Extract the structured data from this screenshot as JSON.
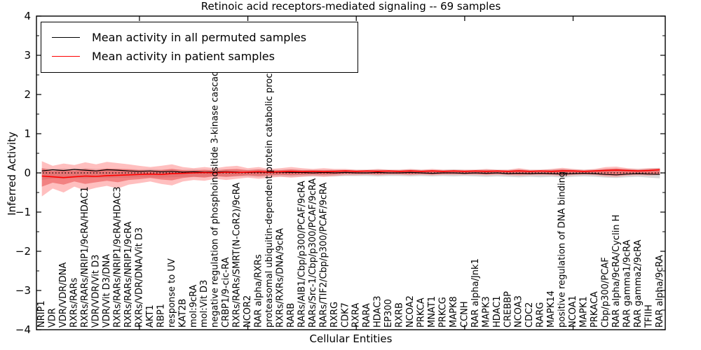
{
  "chart_data": {
    "type": "line",
    "title": "Retinoic acid receptors-mediated signaling -- 69 samples",
    "xlabel": "Cellular Entities",
    "ylabel": "Inferred Activity",
    "ylim": [
      -4,
      4
    ],
    "yticks": [
      4,
      3,
      2,
      1,
      0,
      -1,
      -2,
      -3,
      -4
    ],
    "y_minor_step": 0.5,
    "grid": false,
    "zero_line": true,
    "legend_position": "upper-left",
    "legend": [
      {
        "label": "Mean activity in all permuted samples",
        "color": "#000000"
      },
      {
        "label": "Mean activity in patient samples",
        "color": "#ff0000"
      }
    ],
    "categories": [
      "NRIP1",
      "VDR",
      "VDR/VDR/DNA",
      "RXRs/RARs",
      "RXRs/RARs/NRIP1/9cRA/HDAC1",
      "VDR/VDR/Vit D3",
      "VDR/Vit D3/DNA",
      "RXRs/RARs/NRIP1/9cRA/HDAC3",
      "RXRs/RARs/NRIP1/9cRA",
      "RXRs/VDR/DNA/Vit D3",
      "AKT1",
      "RBP1",
      "response to UV",
      "KAT2B",
      "mol:9cRA",
      "mol:Vit D3",
      "negative regulation of phosphoinositide 3-kinase cascade",
      "CRBP1/9-cic-RA",
      "RXRs/RARs/SMRT(N-CoR2)/9cRA",
      "NCOR2",
      "RAR alpha/RXRs",
      "proteasomal ubiquitin-dependent protein catabolic process",
      "RXRs/RXRs/DNA/9cRA",
      "RARB",
      "RARs/AIB1/Cbp/p300/PCAF/9cRA",
      "RARs/Src-1/Cbp/p300/PCAF/9cRA",
      "RARs/TIF2/Cbp/p300/PCAF/9cRA",
      "RXRG",
      "CDK7",
      "RXRA",
      "RARA",
      "HDAC3",
      "EP300",
      "RXRB",
      "NCOA2",
      "PRKCA",
      "MNAT1",
      "PRKCG",
      "MAPK8",
      "CCNH",
      "RAR alpha/Jnk1",
      "MAPK3",
      "HDAC1",
      "CREBBP",
      "NCOA3",
      "CDC2",
      "RARG",
      "MAPK14",
      "positive regulation of DNA binding",
      "NCOA1",
      "MAPK1",
      "PRKACA",
      "Cbp/p300/PCAF",
      "RAR alpha/9cRA/Cyclin H",
      "RAR gamma1/9cRA",
      "RAR gamma2/9cRA",
      "TFIIH",
      "RAR alpha/9cRA"
    ],
    "series": [
      {
        "name": "Mean activity in all permuted samples",
        "color": "#000000",
        "width": 1.2,
        "values": [
          0.05,
          0.08,
          0.06,
          0.09,
          0.07,
          0.05,
          0.08,
          0.07,
          0.05,
          0.04,
          0.05,
          0.03,
          0.04,
          0.02,
          0.03,
          0.02,
          0.02,
          0.03,
          0.02,
          0.01,
          0.02,
          0.01,
          0.02,
          0.01,
          0.01,
          0.0,
          0.01,
          0.0,
          0.01,
          0.0,
          0.0,
          0.01,
          0.0,
          0.0,
          0.01,
          0.0,
          -0.01,
          0.0,
          0.0,
          -0.01,
          0.0,
          -0.01,
          0.0,
          -0.02,
          -0.01,
          -0.02,
          -0.01,
          -0.02,
          -0.03,
          -0.02,
          -0.01,
          -0.02,
          -0.04,
          -0.05,
          -0.03,
          -0.02,
          -0.03,
          -0.04
        ]
      },
      {
        "name": "Mean activity in patient samples",
        "color": "#ff0000",
        "width": 1.6,
        "values": [
          -0.08,
          -0.1,
          -0.12,
          -0.1,
          -0.08,
          -0.09,
          -0.07,
          -0.06,
          -0.05,
          -0.04,
          -0.03,
          -0.04,
          -0.02,
          -0.01,
          0.0,
          0.01,
          0.0,
          0.02,
          0.01,
          0.02,
          0.03,
          0.02,
          0.03,
          0.04,
          0.03,
          0.04,
          0.03,
          0.04,
          0.05,
          0.04,
          0.05,
          0.04,
          0.05,
          0.04,
          0.05,
          0.04,
          0.05,
          0.04,
          0.05,
          0.04,
          0.05,
          0.04,
          0.05,
          0.04,
          0.05,
          0.04,
          0.05,
          0.04,
          0.05,
          0.05,
          0.04,
          0.05,
          0.06,
          0.07,
          0.06,
          0.05,
          0.06,
          0.08
        ]
      }
    ],
    "bands": [
      {
        "name": "permuted-samples-range",
        "color": "#b8b8b8",
        "opacity": 0.55,
        "upper": [
          0.12,
          0.1,
          0.11,
          0.1,
          0.12,
          0.1,
          0.11,
          0.1,
          0.1,
          0.09,
          0.1,
          0.09,
          0.1,
          0.08,
          0.09,
          0.08,
          0.08,
          0.09,
          0.08,
          0.08,
          0.09,
          0.08,
          0.08,
          0.09,
          0.08,
          0.08,
          0.08,
          0.08,
          0.08,
          0.08,
          0.08,
          0.09,
          0.08,
          0.08,
          0.09,
          0.08,
          0.08,
          0.08,
          0.09,
          0.08,
          0.08,
          0.09,
          0.08,
          0.08,
          0.09,
          0.08,
          0.08,
          0.09,
          0.1,
          0.09,
          0.08,
          0.09,
          0.1,
          0.11,
          0.1,
          0.1,
          0.11,
          0.13
        ],
        "lower": [
          -0.18,
          -0.14,
          -0.15,
          -0.13,
          -0.14,
          -0.12,
          -0.13,
          -0.12,
          -0.12,
          -0.11,
          -0.11,
          -0.12,
          -0.11,
          -0.1,
          -0.1,
          -0.1,
          -0.09,
          -0.1,
          -0.09,
          -0.09,
          -0.1,
          -0.09,
          -0.09,
          -0.1,
          -0.09,
          -0.09,
          -0.09,
          -0.09,
          -0.08,
          -0.08,
          -0.08,
          -0.09,
          -0.08,
          -0.08,
          -0.09,
          -0.08,
          -0.09,
          -0.08,
          -0.09,
          -0.08,
          -0.09,
          -0.1,
          -0.09,
          -0.1,
          -0.11,
          -0.1,
          -0.11,
          -0.1,
          -0.12,
          -0.1,
          -0.09,
          -0.1,
          -0.12,
          -0.13,
          -0.11,
          -0.1,
          -0.12,
          -0.14
        ]
      },
      {
        "name": "patient-samples-range-outer",
        "color": "#ff7070",
        "opacity": 0.45,
        "upper": [
          0.3,
          0.18,
          0.24,
          0.2,
          0.27,
          0.22,
          0.28,
          0.25,
          0.22,
          0.18,
          0.15,
          0.18,
          0.22,
          0.15,
          0.12,
          0.15,
          0.12,
          0.16,
          0.18,
          0.12,
          0.15,
          0.1,
          0.12,
          0.15,
          0.12,
          0.1,
          0.12,
          0.1,
          0.1,
          0.08,
          0.08,
          0.1,
          0.08,
          0.08,
          0.1,
          0.08,
          0.1,
          0.08,
          0.08,
          0.08,
          0.08,
          0.1,
          0.08,
          0.08,
          0.12,
          0.08,
          0.08,
          0.1,
          0.13,
          0.1,
          0.08,
          0.1,
          0.15,
          0.16,
          0.12,
          0.1,
          0.12,
          0.12
        ],
        "lower": [
          -0.6,
          -0.4,
          -0.5,
          -0.35,
          -0.45,
          -0.38,
          -0.33,
          -0.4,
          -0.3,
          -0.26,
          -0.22,
          -0.28,
          -0.32,
          -0.22,
          -0.18,
          -0.2,
          -0.15,
          -0.18,
          -0.15,
          -0.12,
          -0.15,
          -0.12,
          -0.1,
          -0.12,
          -0.1,
          -0.08,
          -0.1,
          -0.08,
          -0.06,
          -0.06,
          -0.05,
          -0.06,
          -0.05,
          -0.05,
          -0.06,
          -0.05,
          -0.06,
          -0.05,
          -0.05,
          -0.05,
          -0.05,
          -0.06,
          -0.05,
          -0.06,
          -0.07,
          -0.06,
          -0.06,
          -0.06,
          -0.08,
          -0.06,
          -0.05,
          -0.06,
          -0.09,
          -0.1,
          -0.07,
          -0.06,
          -0.07,
          -0.05
        ]
      },
      {
        "name": "patient-samples-range-inner",
        "color": "#e23535",
        "opacity": 0.45,
        "upper": [
          0.12,
          0.05,
          0.08,
          0.06,
          0.1,
          0.07,
          0.11,
          0.1,
          0.09,
          0.07,
          0.06,
          0.07,
          0.1,
          0.07,
          0.06,
          0.08,
          0.06,
          0.09,
          0.1,
          0.07,
          0.09,
          0.06,
          0.07,
          0.09,
          0.07,
          0.07,
          0.07,
          0.07,
          0.07,
          0.06,
          0.06,
          0.07,
          0.06,
          0.06,
          0.07,
          0.06,
          0.07,
          0.06,
          0.06,
          0.06,
          0.06,
          0.07,
          0.06,
          0.06,
          0.08,
          0.06,
          0.06,
          0.07,
          0.09,
          0.07,
          0.06,
          0.07,
          0.1,
          0.11,
          0.09,
          0.07,
          0.09,
          0.1
        ],
        "lower": [
          -0.35,
          -0.25,
          -0.3,
          -0.22,
          -0.28,
          -0.24,
          -0.2,
          -0.24,
          -0.18,
          -0.16,
          -0.13,
          -0.17,
          -0.19,
          -0.13,
          -0.1,
          -0.12,
          -0.08,
          -0.1,
          -0.08,
          -0.06,
          -0.08,
          -0.06,
          -0.05,
          -0.06,
          -0.05,
          -0.04,
          -0.05,
          -0.04,
          -0.02,
          -0.02,
          -0.02,
          -0.03,
          -0.02,
          -0.02,
          -0.03,
          -0.02,
          -0.03,
          -0.02,
          -0.02,
          -0.02,
          -0.02,
          -0.03,
          -0.02,
          -0.03,
          -0.04,
          -0.03,
          -0.03,
          -0.03,
          -0.05,
          -0.03,
          -0.02,
          -0.03,
          -0.05,
          -0.06,
          -0.04,
          -0.03,
          -0.04,
          -0.02
        ]
      }
    ]
  }
}
